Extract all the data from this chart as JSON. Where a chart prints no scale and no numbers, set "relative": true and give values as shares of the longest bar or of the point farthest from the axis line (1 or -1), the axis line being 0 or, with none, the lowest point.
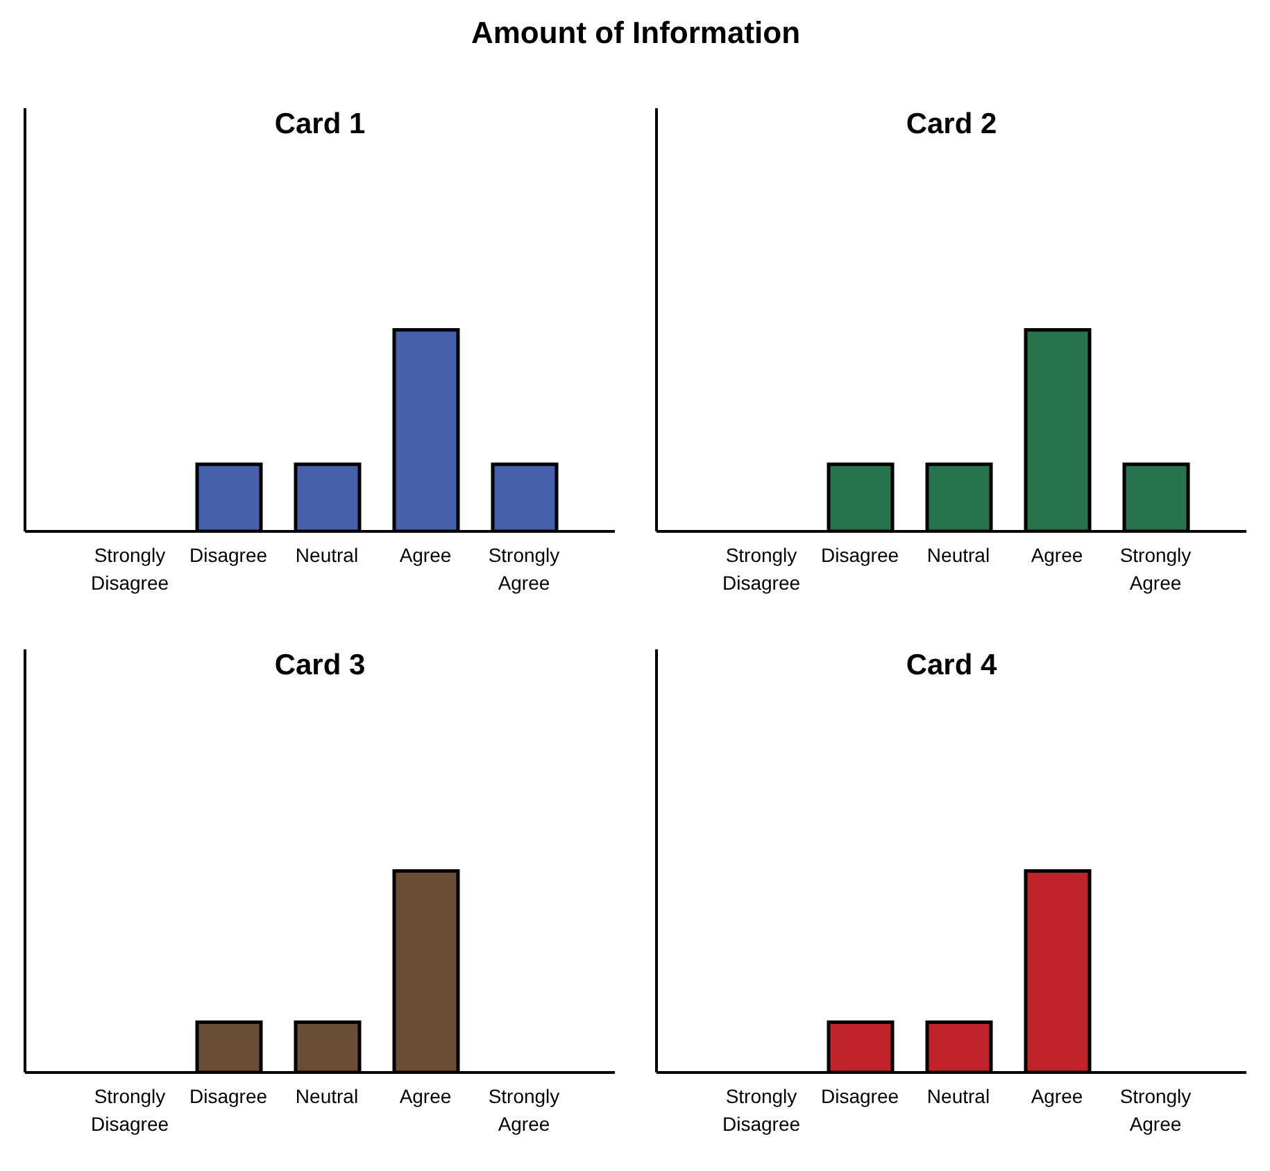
{
  "chart_data": [
    {
      "type": "bar",
      "title": "Card 1",
      "annotations": [
        "Amount of Information"
      ],
      "categories": [
        "Strongly Disagree",
        "Disagree",
        "Neutral",
        "Agree",
        "Strongly Agree"
      ],
      "values": [
        0,
        0.333,
        0.333,
        1,
        0.333
      ],
      "color": "#4560ad",
      "relative": true
    },
    {
      "type": "bar",
      "title": "Card 2",
      "categories": [
        "Strongly Disagree",
        "Disagree",
        "Neutral",
        "Agree",
        "Strongly Agree"
      ],
      "values": [
        0,
        0.333,
        0.333,
        1,
        0.333
      ],
      "color": "#27734d",
      "relative": true
    },
    {
      "type": "bar",
      "title": "Card 3",
      "categories": [
        "Strongly Disagree",
        "Disagree",
        "Neutral",
        "Agree",
        "Strongly Agree"
      ],
      "values": [
        0,
        0.25,
        0.25,
        1,
        0
      ],
      "color": "#6b4c35",
      "relative": true
    },
    {
      "type": "bar",
      "title": "Card 4",
      "categories": [
        "Strongly Disagree",
        "Disagree",
        "Neutral",
        "Agree",
        "Strongly Agree"
      ],
      "values": [
        0,
        0.25,
        0.25,
        1,
        0
      ],
      "color": "#c0232a",
      "relative": true
    }
  ]
}
